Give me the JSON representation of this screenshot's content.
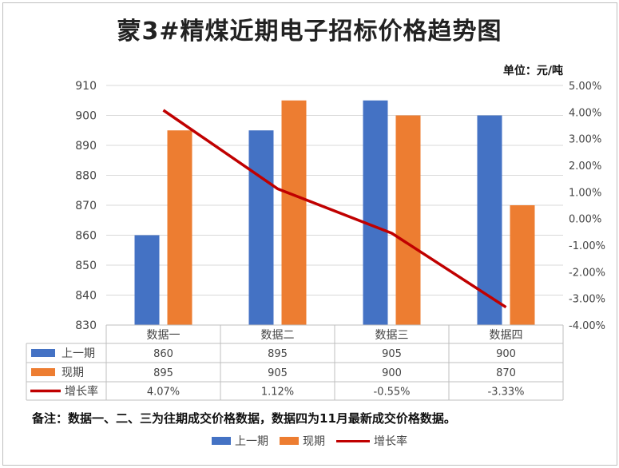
{
  "title": "蒙3#精煤近期电子招标价格趋势图",
  "unit": "单位：元/吨",
  "note": "备注：数据一、二、三为往期成交价格数据，数据四为11月最新成交价格数据。",
  "colors": {
    "prev": "#4472C4",
    "cur": "#ED7D31",
    "growth": "#C00000"
  },
  "chart_data": {
    "type": "bar",
    "categories": [
      "数据一",
      "数据二",
      "数据三",
      "数据四"
    ],
    "series": [
      {
        "name": "上一期",
        "kind": "bar",
        "axis": "left",
        "values": [
          860,
          895,
          905,
          900
        ]
      },
      {
        "name": "现期",
        "kind": "bar",
        "axis": "left",
        "values": [
          895,
          905,
          900,
          870
        ]
      },
      {
        "name": "增长率",
        "kind": "line",
        "axis": "right",
        "values": [
          4.07,
          1.12,
          -0.55,
          -3.33
        ]
      }
    ],
    "table_values": [
      [
        "860",
        "895",
        "905",
        "900"
      ],
      [
        "895",
        "905",
        "900",
        "870"
      ],
      [
        "4.07%",
        "1.12%",
        "-0.55%",
        "-3.33%"
      ]
    ],
    "y_left": {
      "min": 830,
      "max": 910,
      "step": 10,
      "ticks": [
        "910",
        "900",
        "890",
        "880",
        "870",
        "860",
        "850",
        "840",
        "830"
      ]
    },
    "y_right": {
      "min": -4.0,
      "max": 5.0,
      "step": 1.0,
      "ticks": [
        "5.00%",
        "4.00%",
        "3.00%",
        "2.00%",
        "1.00%",
        "0.00%",
        "-1.00%",
        "-2.00%",
        "-3.00%",
        "-4.00%"
      ]
    },
    "legend": [
      "上一期",
      "现期",
      "增长率"
    ]
  }
}
